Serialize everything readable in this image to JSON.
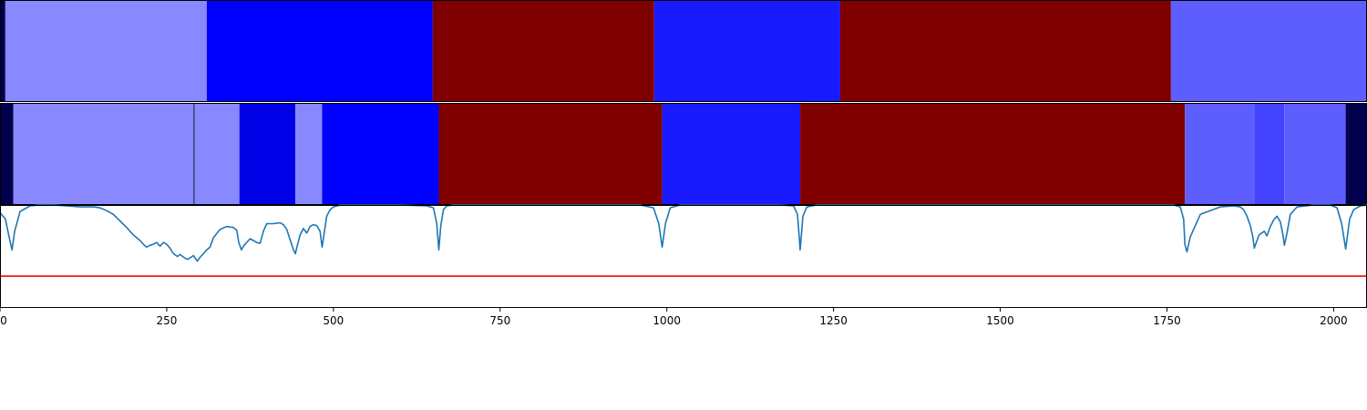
{
  "chart_data": [
    {
      "type": "heatmap",
      "panel": "segmentation-top",
      "xlim": [
        0,
        2050
      ],
      "segments": [
        {
          "start": 0,
          "end": 8,
          "color": "#00004c"
        },
        {
          "start": 8,
          "end": 310,
          "color": "#8888ff"
        },
        {
          "start": 310,
          "end": 649,
          "color": "#0000ff"
        },
        {
          "start": 649,
          "end": 981,
          "color": "#800000"
        },
        {
          "start": 981,
          "end": 1260,
          "color": "#1a1aff"
        },
        {
          "start": 1260,
          "end": 1756,
          "color": "#800000"
        },
        {
          "start": 1756,
          "end": 2050,
          "color": "#5e5eff"
        }
      ]
    },
    {
      "type": "heatmap",
      "panel": "segmentation-bottom",
      "xlim": [
        0,
        2050
      ],
      "segments": [
        {
          "start": 0,
          "end": 20,
          "color": "#00004c"
        },
        {
          "start": 20,
          "end": 291,
          "color": "#8888ff"
        },
        {
          "start": 291,
          "end": 359,
          "color": "#8888ff"
        },
        {
          "start": 359,
          "end": 443,
          "color": "#0000e6"
        },
        {
          "start": 443,
          "end": 483,
          "color": "#8888ff"
        },
        {
          "start": 483,
          "end": 658,
          "color": "#0000ff"
        },
        {
          "start": 658,
          "end": 993,
          "color": "#800000"
        },
        {
          "start": 993,
          "end": 1200,
          "color": "#1a1aff"
        },
        {
          "start": 1200,
          "end": 1777,
          "color": "#800000"
        },
        {
          "start": 1777,
          "end": 1881,
          "color": "#5e5eff"
        },
        {
          "start": 1881,
          "end": 1926,
          "color": "#4444ff"
        },
        {
          "start": 1926,
          "end": 2018,
          "color": "#5e5eff"
        },
        {
          "start": 2018,
          "end": 2050,
          "color": "#00004c"
        }
      ],
      "boundaries": [
        291
      ]
    },
    {
      "type": "line",
      "panel": "score-line",
      "xlim": [
        0,
        2050
      ],
      "ylim": [
        -0.1,
        1.0
      ],
      "threshold": 0.24,
      "threshold_color": "#ff0000",
      "line_color": "#1f77b4",
      "xticks": [
        0,
        250,
        500,
        750,
        1000,
        1250,
        1500,
        1750,
        2000
      ],
      "x": [
        0,
        8,
        14,
        18,
        22,
        30,
        45,
        60,
        80,
        100,
        120,
        140,
        150,
        160,
        170,
        180,
        190,
        200,
        210,
        215,
        220,
        225,
        230,
        235,
        240,
        245,
        250,
        255,
        258,
        262,
        266,
        270,
        274,
        278,
        282,
        286,
        290,
        293,
        296,
        300,
        305,
        310,
        315,
        320,
        330,
        340,
        350,
        355,
        358,
        362,
        365,
        370,
        375,
        380,
        385,
        390,
        395,
        400,
        410,
        420,
        425,
        430,
        435,
        440,
        443,
        446,
        450,
        455,
        460,
        465,
        470,
        475,
        480,
        483,
        486,
        490,
        495,
        500,
        510,
        520,
        560,
        600,
        640,
        650,
        655,
        658,
        661,
        665,
        670,
        680,
        700,
        800,
        900,
        960,
        980,
        988,
        993,
        998,
        1005,
        1020,
        1100,
        1170,
        1190,
        1196,
        1200,
        1204,
        1210,
        1225,
        1300,
        1500,
        1700,
        1760,
        1770,
        1775,
        1777,
        1780,
        1785,
        1800,
        1830,
        1850,
        1860,
        1865,
        1870,
        1875,
        1879,
        1881,
        1884,
        1888,
        1892,
        1896,
        1900,
        1905,
        1910,
        1915,
        1920,
        1924,
        1926,
        1930,
        1935,
        1945,
        1970,
        1995,
        2005,
        2012,
        2018,
        2024,
        2030,
        2040,
        2050
      ],
      "y": [
        0.92,
        0.85,
        0.65,
        0.52,
        0.72,
        0.93,
        0.99,
        1.0,
        1.0,
        0.99,
        0.98,
        0.98,
        0.97,
        0.94,
        0.9,
        0.83,
        0.76,
        0.68,
        0.62,
        0.58,
        0.55,
        0.57,
        0.58,
        0.6,
        0.56,
        0.6,
        0.58,
        0.54,
        0.5,
        0.47,
        0.45,
        0.47,
        0.45,
        0.43,
        0.42,
        0.44,
        0.46,
        0.43,
        0.4,
        0.44,
        0.48,
        0.52,
        0.55,
        0.65,
        0.74,
        0.77,
        0.76,
        0.73,
        0.6,
        0.52,
        0.56,
        0.6,
        0.64,
        0.62,
        0.6,
        0.59,
        0.72,
        0.8,
        0.8,
        0.81,
        0.79,
        0.74,
        0.63,
        0.52,
        0.48,
        0.57,
        0.68,
        0.75,
        0.7,
        0.77,
        0.79,
        0.78,
        0.72,
        0.55,
        0.69,
        0.88,
        0.95,
        0.98,
        1.0,
        1.0,
        1.0,
        1.0,
        0.99,
        0.97,
        0.8,
        0.52,
        0.78,
        0.95,
        0.99,
        1.0,
        1.0,
        1.0,
        1.0,
        1.0,
        0.97,
        0.8,
        0.55,
        0.8,
        0.97,
        1.0,
        1.0,
        1.0,
        0.99,
        0.9,
        0.52,
        0.88,
        0.98,
        1.0,
        1.0,
        1.0,
        1.0,
        1.0,
        0.98,
        0.85,
        0.58,
        0.5,
        0.66,
        0.9,
        0.98,
        0.99,
        0.98,
        0.95,
        0.88,
        0.78,
        0.65,
        0.54,
        0.6,
        0.68,
        0.7,
        0.72,
        0.67,
        0.77,
        0.84,
        0.88,
        0.82,
        0.68,
        0.57,
        0.7,
        0.9,
        0.98,
        1.0,
        1.0,
        0.97,
        0.8,
        0.53,
        0.85,
        0.95,
        0.99,
        1.0
      ]
    }
  ]
}
